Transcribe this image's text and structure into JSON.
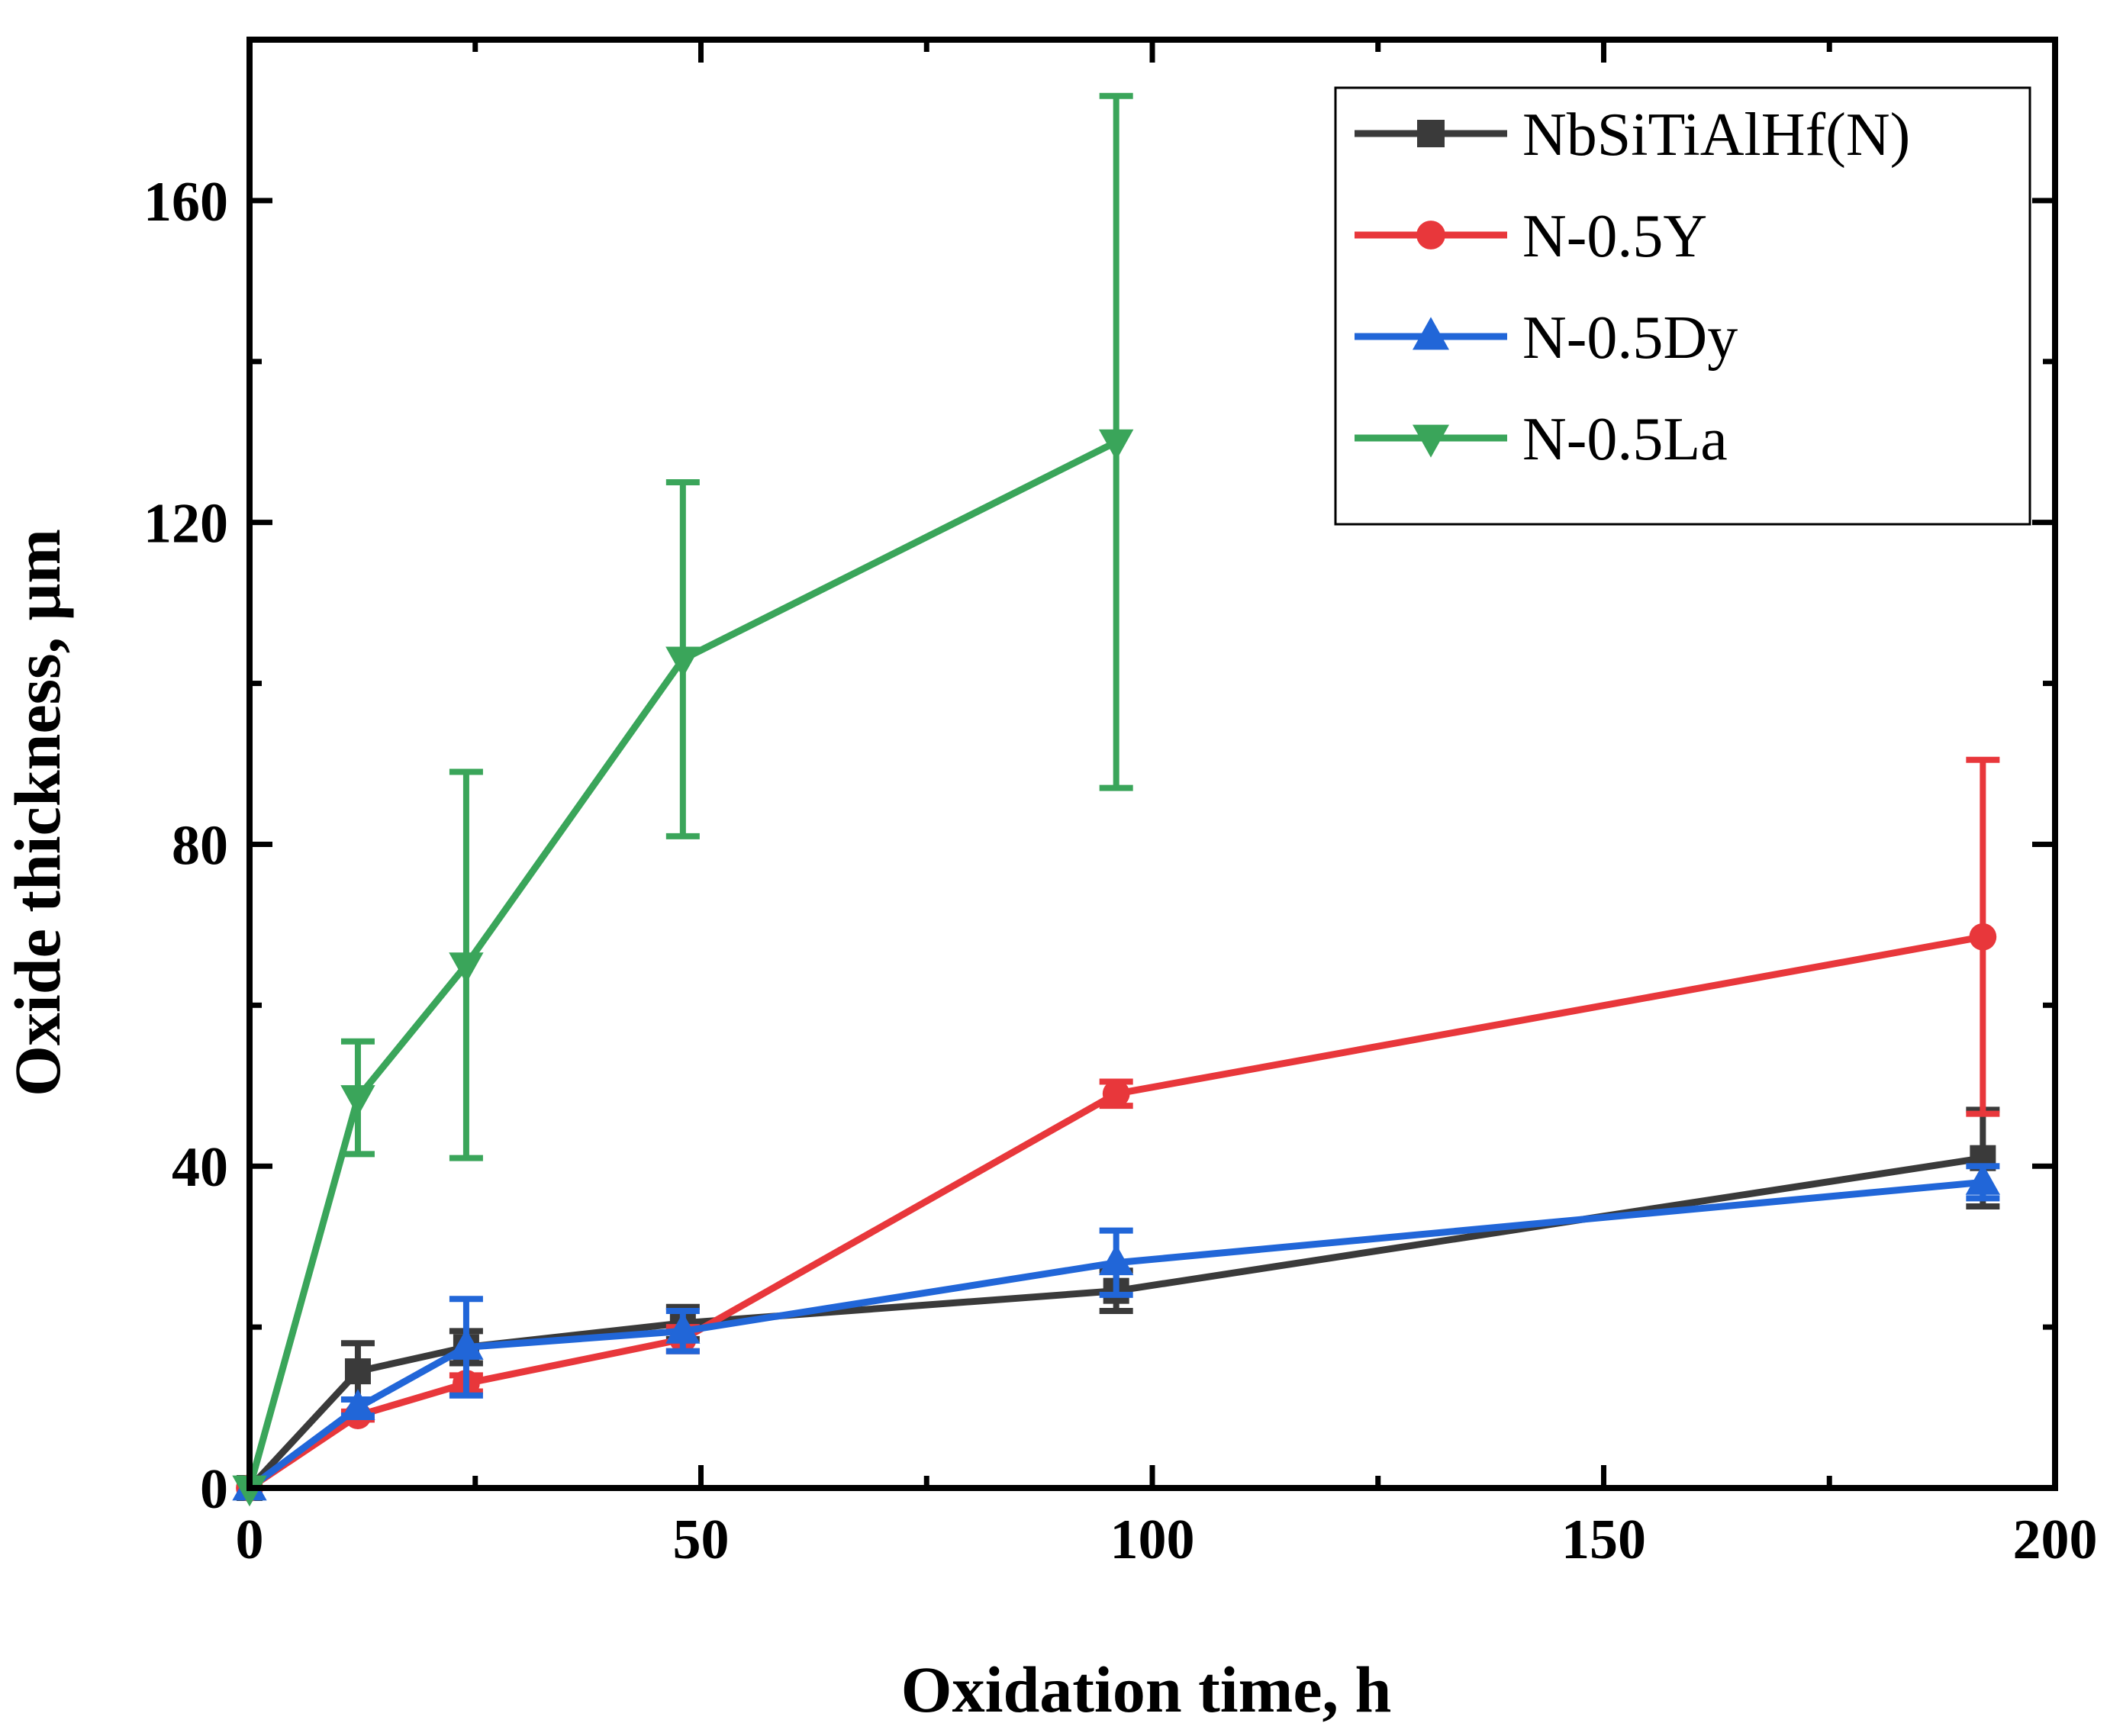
{
  "chart_data": {
    "type": "line",
    "title": "",
    "xlabel": "Oxidation time, h",
    "ylabel": "Oxide thickness, μm",
    "xlim": [
      0,
      200
    ],
    "ylim": [
      0,
      180
    ],
    "xticks": [
      0,
      50,
      100,
      150,
      200
    ],
    "yticks": [
      0,
      40,
      80,
      120,
      160
    ],
    "xtick_labels": [
      "0",
      "50",
      "100",
      "150",
      "200"
    ],
    "ytick_labels": [
      "0",
      "40",
      "80",
      "120",
      "160"
    ],
    "legend_position": "top-right",
    "grid": false,
    "series": [
      {
        "name": "NbSiTiAlHf(N)",
        "color": "#3a3a3a",
        "marker": "square",
        "x": [
          0,
          12,
          24,
          48,
          96,
          192
        ],
        "y": [
          0,
          14.5,
          17.5,
          20.5,
          24.5,
          41
        ],
        "err": [
          0,
          3.5,
          2,
          2,
          2.5,
          6
        ]
      },
      {
        "name": "N-0.5Y",
        "color": "#e8373b",
        "marker": "circle",
        "x": [
          0,
          12,
          24,
          48,
          96,
          192
        ],
        "y": [
          0,
          9,
          13,
          18.5,
          49,
          68.5
        ],
        "err": [
          0,
          0.5,
          1,
          1.5,
          1.5,
          22
        ]
      },
      {
        "name": "N-0.5Dy",
        "color": "#2166d8",
        "marker": "triangle-up",
        "x": [
          0,
          12,
          24,
          48,
          96,
          192
        ],
        "y": [
          0,
          10,
          17.5,
          19.5,
          28,
          38
        ],
        "err": [
          0,
          1,
          6,
          2.5,
          4,
          2
        ]
      },
      {
        "name": "N-0.5La",
        "color": "#3aa55a",
        "marker": "triangle-down",
        "x": [
          0,
          12,
          24,
          48,
          96
        ],
        "y": [
          0,
          48.5,
          65,
          103,
          130
        ],
        "err": [
          0,
          7,
          24,
          22,
          43
        ]
      }
    ]
  }
}
